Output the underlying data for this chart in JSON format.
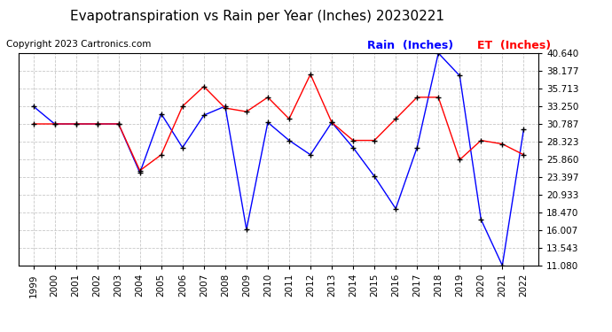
{
  "title": "Evapotranspiration vs Rain per Year (Inches) 20230221",
  "copyright": "Copyright 2023 Cartronics.com",
  "legend_rain": "Rain  (Inches)",
  "legend_et": "ET  (Inches)",
  "years": [
    1999,
    2000,
    2001,
    2002,
    2003,
    2004,
    2005,
    2006,
    2007,
    2008,
    2009,
    2010,
    2011,
    2012,
    2013,
    2014,
    2015,
    2016,
    2017,
    2018,
    2019,
    2020,
    2021,
    2022
  ],
  "rain": [
    33.25,
    30.79,
    30.79,
    30.79,
    30.79,
    24.0,
    32.2,
    27.5,
    32.0,
    33.25,
    16.1,
    31.0,
    28.5,
    26.5,
    31.0,
    27.5,
    23.5,
    19.0,
    27.5,
    40.64,
    37.5,
    17.5,
    11.1,
    30.0
  ],
  "et": [
    30.79,
    30.79,
    30.79,
    30.79,
    30.79,
    24.3,
    26.5,
    33.25,
    36.0,
    33.0,
    32.5,
    34.5,
    31.5,
    37.7,
    31.0,
    28.5,
    28.5,
    31.5,
    34.5,
    34.5,
    25.8,
    28.5,
    28.0,
    26.5
  ],
  "rain_color": "#0000ff",
  "et_color": "#ff0000",
  "marker_color": "#000000",
  "background_color": "#ffffff",
  "grid_color": "#c8c8c8",
  "yticks": [
    11.08,
    13.543,
    16.007,
    18.47,
    20.933,
    23.397,
    25.86,
    28.323,
    30.787,
    33.25,
    35.713,
    38.177,
    40.64
  ],
  "ymin": 11.08,
  "ymax": 40.64,
  "title_fontsize": 11,
  "copyright_fontsize": 7.5,
  "legend_fontsize": 9,
  "tick_fontsize": 7.5,
  "linewidth": 1.0,
  "markersize": 4
}
